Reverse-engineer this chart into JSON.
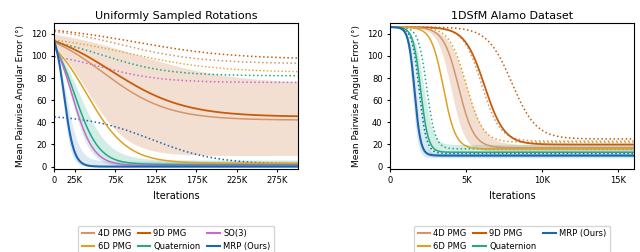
{
  "left_title": "Uniformly Sampled Rotations",
  "right_title": "1DSfM Alamo Dataset",
  "ylabel": "Mean Pairwise Angular Error (°)",
  "xlabel": "Iterations",
  "colors": {
    "4D PMG": "#d4956a",
    "6D PMG": "#e0a020",
    "9D PMG": "#c85c0a",
    "Quaternion": "#22a882",
    "SO3": "#cc66cc",
    "MRP": "#1a66b0"
  },
  "left_xlim": [
    0,
    300000
  ],
  "left_ylim": [
    -2,
    130
  ],
  "left_xticks": [
    0,
    25000,
    75000,
    125000,
    175000,
    225000,
    275000
  ],
  "left_xticklabels": [
    "0",
    "25K",
    "75K",
    "125K",
    "175K",
    "225K",
    "275K"
  ],
  "right_xlim": [
    0,
    16000
  ],
  "right_ylim": [
    -2,
    130
  ],
  "right_xticks": [
    0,
    5000,
    10000,
    15000
  ],
  "right_xticklabels": [
    "0",
    "5K",
    "10K",
    "15K"
  ]
}
